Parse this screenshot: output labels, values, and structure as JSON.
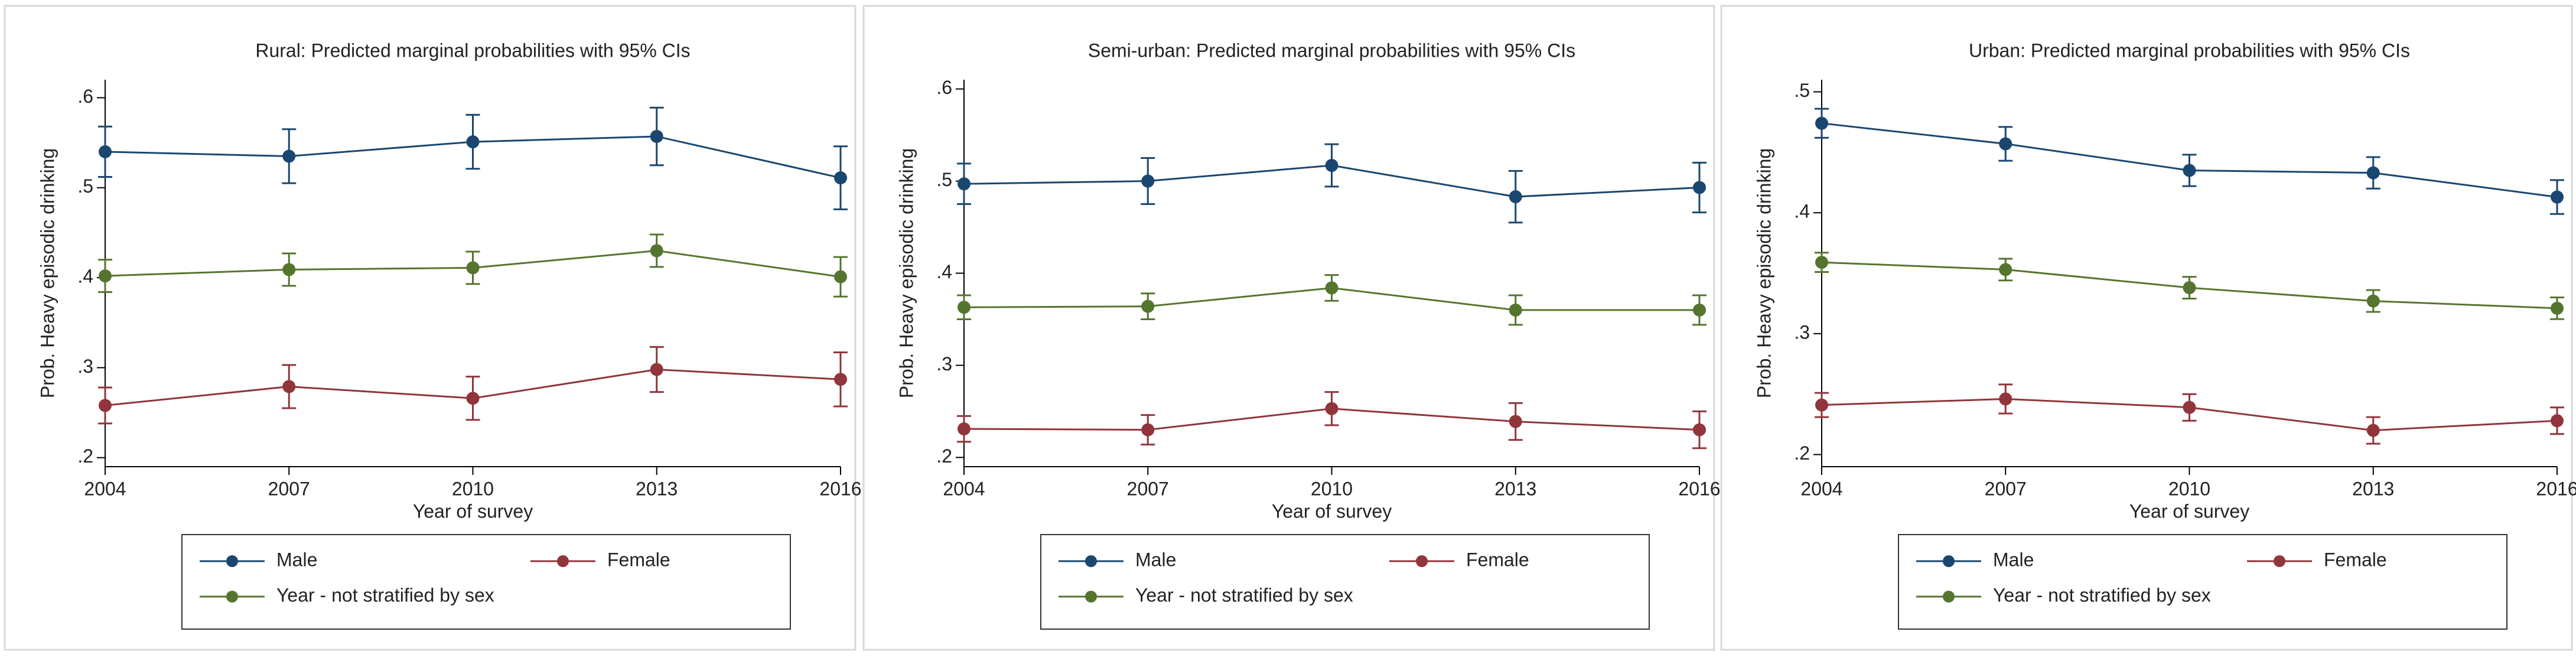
{
  "chart_data": [
    {
      "type": "line",
      "title": "Rural: Predicted marginal probabilities with 95% CIs",
      "xlabel": "Year of survey",
      "ylabel": "Prob. Heavy episodic drinking",
      "x": [
        2004,
        2007,
        2010,
        2013,
        2016
      ],
      "xlim": [
        2004,
        2016
      ],
      "xticks": [
        2004,
        2007,
        2010,
        2013,
        2016
      ],
      "ylim": [
        0.19,
        0.62
      ],
      "yticks": [
        {
          "value": 0.2,
          "label": ".2"
        },
        {
          "value": 0.3,
          "label": ".3"
        },
        {
          "value": 0.4,
          "label": ".4"
        },
        {
          "value": 0.5,
          "label": ".5"
        },
        {
          "value": 0.6,
          "label": ".6"
        }
      ],
      "series": [
        {
          "name": "Male",
          "color": "#1a476f",
          "values": [
            0.54,
            0.535,
            0.551,
            0.557,
            0.511
          ],
          "errors": [
            0.028,
            0.03,
            0.03,
            0.032,
            0.035
          ]
        },
        {
          "name": "Female",
          "color": "#90353b",
          "values": [
            0.258,
            0.279,
            0.266,
            0.298,
            0.287
          ],
          "errors": [
            0.02,
            0.024,
            0.024,
            0.025,
            0.03
          ]
        },
        {
          "name": "Year - not stratified by sex",
          "color": "#55752f",
          "values": [
            0.402,
            0.409,
            0.411,
            0.43,
            0.401
          ],
          "errors": [
            0.018,
            0.018,
            0.018,
            0.018,
            0.022
          ]
        }
      ]
    },
    {
      "type": "line",
      "title": "Semi-urban: Predicted marginal probabilities with 95% CIs",
      "xlabel": "Year of survey",
      "ylabel": "Prob. Heavy episodic drinking",
      "x": [
        2004,
        2007,
        2010,
        2013,
        2016
      ],
      "xlim": [
        2004,
        2016
      ],
      "xticks": [
        2004,
        2007,
        2010,
        2013,
        2016
      ],
      "ylim": [
        0.19,
        0.61
      ],
      "yticks": [
        {
          "value": 0.2,
          "label": ".2"
        },
        {
          "value": 0.3,
          "label": ".3"
        },
        {
          "value": 0.4,
          "label": ".4"
        },
        {
          "value": 0.5,
          "label": ".5"
        },
        {
          "value": 0.6,
          "label": ".6"
        }
      ],
      "series": [
        {
          "name": "Male",
          "color": "#1a476f",
          "values": [
            0.497,
            0.5,
            0.517,
            0.483,
            0.493
          ],
          "errors": [
            0.022,
            0.025,
            0.023,
            0.028,
            0.027
          ]
        },
        {
          "name": "Female",
          "color": "#90353b",
          "values": [
            0.231,
            0.23,
            0.253,
            0.239,
            0.23
          ],
          "errors": [
            0.014,
            0.016,
            0.018,
            0.02,
            0.02
          ]
        },
        {
          "name": "Year - not stratified by sex",
          "color": "#55752f",
          "values": [
            0.363,
            0.364,
            0.384,
            0.36,
            0.36
          ],
          "errors": [
            0.013,
            0.014,
            0.014,
            0.016,
            0.016
          ]
        }
      ]
    },
    {
      "type": "line",
      "title": "Urban: Predicted marginal probabilities with 95% CIs",
      "xlabel": "Year of survey",
      "ylabel": "Prob. Heavy episodic drinking",
      "x": [
        2004,
        2007,
        2010,
        2013,
        2016
      ],
      "xlim": [
        2004,
        2016
      ],
      "xticks": [
        2004,
        2007,
        2010,
        2013,
        2016
      ],
      "ylim": [
        0.19,
        0.51
      ],
      "yticks": [
        {
          "value": 0.2,
          "label": ".2"
        },
        {
          "value": 0.3,
          "label": ".3"
        },
        {
          "value": 0.4,
          "label": ".4"
        },
        {
          "value": 0.5,
          "label": ".5"
        }
      ],
      "series": [
        {
          "name": "Male",
          "color": "#1a476f",
          "values": [
            0.474,
            0.457,
            0.435,
            0.433,
            0.413
          ],
          "errors": [
            0.012,
            0.014,
            0.013,
            0.013,
            0.014
          ]
        },
        {
          "name": "Female",
          "color": "#90353b",
          "values": [
            0.241,
            0.246,
            0.239,
            0.22,
            0.228
          ],
          "errors": [
            0.01,
            0.012,
            0.011,
            0.011,
            0.011
          ]
        },
        {
          "name": "Year - not stratified by sex",
          "color": "#55752f",
          "values": [
            0.359,
            0.353,
            0.338,
            0.327,
            0.321
          ],
          "errors": [
            0.008,
            0.009,
            0.009,
            0.009,
            0.009
          ]
        }
      ]
    }
  ]
}
